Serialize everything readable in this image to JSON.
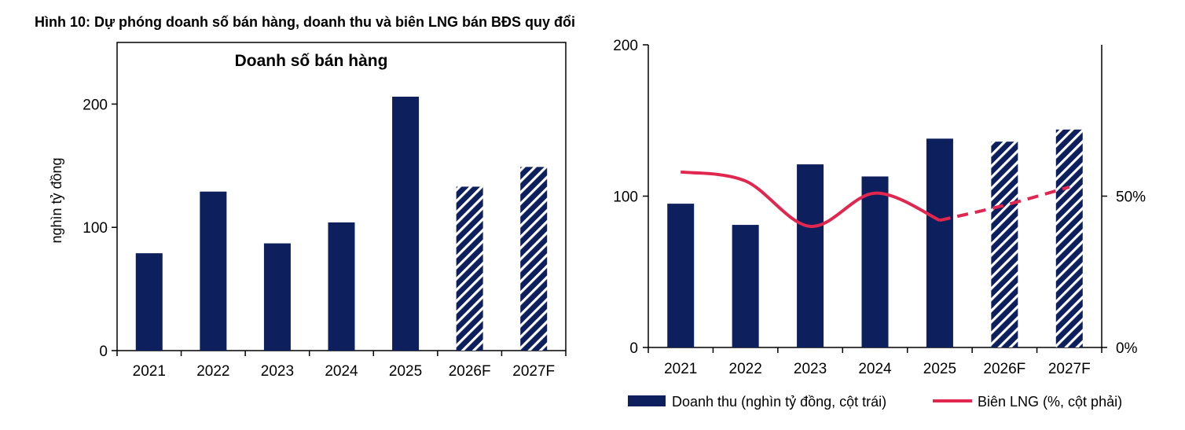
{
  "figure_title": "Hình 10: Dự phóng doanh số bán hàng, doanh thu và biên LNG bán BĐS quy đổi",
  "colors": {
    "bar": "#0d1f5c",
    "line": "#e0274f",
    "hatch_bg": "#ffffff"
  },
  "chart_data": [
    {
      "type": "bar",
      "title": "Doanh số bán hàng",
      "ylabel": "nghìn tỷ đồng",
      "xlabel": "",
      "ylim": [
        0,
        250
      ],
      "yticks": [
        0,
        100,
        200
      ],
      "categories": [
        "2021",
        "2022",
        "2023",
        "2024",
        "2025",
        "2026F",
        "2027F"
      ],
      "values": [
        79,
        129,
        87,
        104,
        206,
        133,
        149
      ],
      "forecast": [
        false,
        false,
        false,
        false,
        false,
        true,
        true
      ],
      "grid": false
    },
    {
      "type": "bar+line",
      "title": "",
      "categories": [
        "2021",
        "2022",
        "2023",
        "2024",
        "2025",
        "2026F",
        "2027F"
      ],
      "left_axis": {
        "ylim": [
          0,
          200
        ],
        "yticks": [
          0,
          100,
          200
        ]
      },
      "right_axis": {
        "ylim": [
          0,
          100
        ],
        "yticks": [
          0,
          50
        ],
        "tick_labels": [
          "0%",
          "50%"
        ]
      },
      "series": [
        {
          "name": "Doanh thu (nghìn tỷ đồng, cột trái)",
          "type": "bar",
          "axis": "left",
          "values": [
            95,
            81,
            121,
            113,
            138,
            136,
            144
          ],
          "forecast": [
            false,
            false,
            false,
            false,
            false,
            true,
            true
          ]
        },
        {
          "name": "Biên LNG (%, cột phải)",
          "type": "line",
          "axis": "right",
          "values": [
            58,
            55,
            40,
            51,
            42,
            47,
            53
          ],
          "forecast": [
            false,
            false,
            false,
            false,
            false,
            true,
            true
          ]
        }
      ],
      "legend": "bottom",
      "grid": false
    }
  ]
}
